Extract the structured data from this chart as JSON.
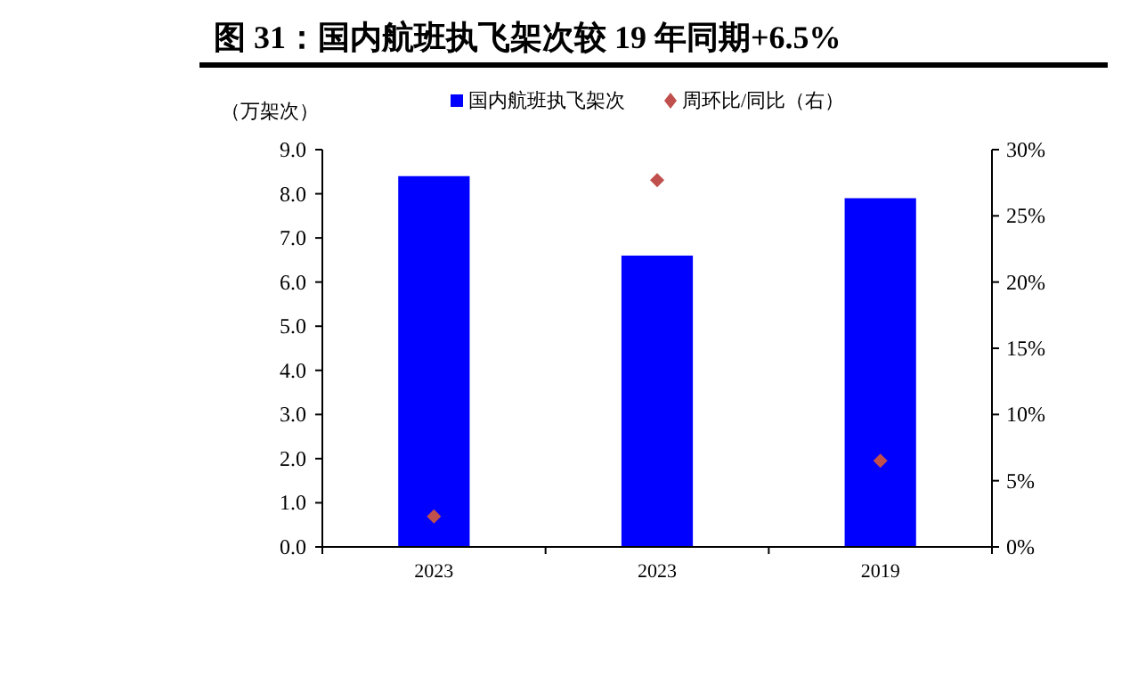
{
  "chart_data": {
    "type": "bar",
    "title": "图 31：国内航班执飞架次较 19 年同期+6.5%",
    "ylabel": "（万架次）",
    "categories": [
      "2023",
      "2023",
      "2019"
    ],
    "series": [
      {
        "name": "国内航班执飞架次",
        "color": "#0000ff",
        "values": [
          8.4,
          6.6,
          7.9
        ]
      },
      {
        "name": "周环比/同比（右）",
        "type": "scatter",
        "axis": "y2",
        "marker": "diamond",
        "color": "#c0504d",
        "values": [
          2.3,
          27.7,
          6.5
        ]
      }
    ],
    "ylim": [
      0,
      9
    ],
    "yticks": [
      {
        "value": 0,
        "label": "0.0"
      },
      {
        "value": 1,
        "label": "1.0"
      },
      {
        "value": 2,
        "label": "2.0"
      },
      {
        "value": 3,
        "label": "3.0"
      },
      {
        "value": 4,
        "label": "4.0"
      },
      {
        "value": 5,
        "label": "5.0"
      },
      {
        "value": 6,
        "label": "6.0"
      },
      {
        "value": 7,
        "label": "7.0"
      },
      {
        "value": 8,
        "label": "8.0"
      },
      {
        "value": 9,
        "label": "9.0"
      }
    ],
    "y2lim": [
      0,
      30
    ],
    "y2ticks": [
      {
        "value": 0,
        "label": "0%"
      },
      {
        "value": 5,
        "label": "5%"
      },
      {
        "value": 10,
        "label": "10%"
      },
      {
        "value": 15,
        "label": "15%"
      },
      {
        "value": 20,
        "label": "20%"
      },
      {
        "value": 25,
        "label": "25%"
      },
      {
        "value": 30,
        "label": "30%"
      }
    ],
    "legend": "top",
    "grid": false
  }
}
